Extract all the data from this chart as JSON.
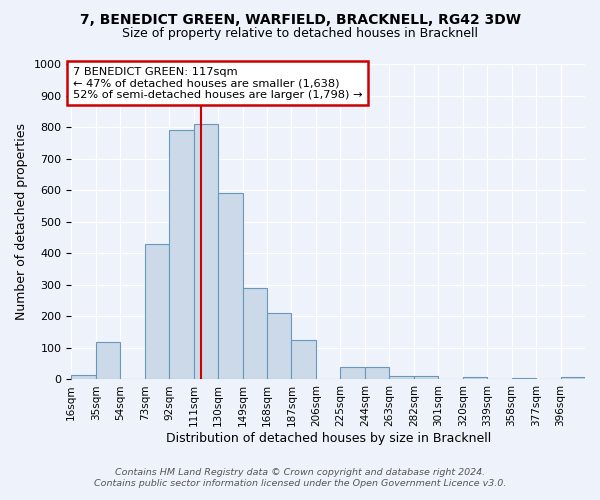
{
  "title1": "7, BENEDICT GREEN, WARFIELD, BRACKNELL, RG42 3DW",
  "title2": "Size of property relative to detached houses in Bracknell",
  "xlabel": "Distribution of detached houses by size in Bracknell",
  "ylabel": "Number of detached properties",
  "bar_color": "#ccd9e8",
  "bar_edge_color": "#6699bb",
  "background_color": "#eef2fa",
  "grid_color": "#ffffff",
  "bin_labels": [
    "16sqm",
    "35sqm",
    "54sqm",
    "73sqm",
    "92sqm",
    "111sqm",
    "130sqm",
    "149sqm",
    "168sqm",
    "187sqm",
    "206sqm",
    "225sqm",
    "244sqm",
    "263sqm",
    "282sqm",
    "301sqm",
    "320sqm",
    "339sqm",
    "358sqm",
    "377sqm",
    "396sqm"
  ],
  "bar_heights": [
    15,
    120,
    0,
    430,
    790,
    810,
    590,
    290,
    210,
    125,
    0,
    40,
    40,
    12,
    10,
    0,
    8,
    0,
    5,
    0,
    8
  ],
  "bin_edges": [
    16,
    35,
    54,
    73,
    92,
    111,
    130,
    149,
    168,
    187,
    206,
    225,
    244,
    263,
    282,
    301,
    320,
    339,
    358,
    377,
    396,
    415
  ],
  "marker_value": 117,
  "marker_color": "#cc0000",
  "annotation_title": "7 BENEDICT GREEN: 117sqm",
  "annotation_line1": "← 47% of detached houses are smaller (1,638)",
  "annotation_line2": "52% of semi-detached houses are larger (1,798) →",
  "annotation_box_color": "#ffffff",
  "annotation_box_edge_color": "#cc0000",
  "ylim": [
    0,
    1000
  ],
  "yticks": [
    0,
    100,
    200,
    300,
    400,
    500,
    600,
    700,
    800,
    900,
    1000
  ],
  "footnote1": "Contains HM Land Registry data © Crown copyright and database right 2024.",
  "footnote2": "Contains public sector information licensed under the Open Government Licence v3.0."
}
